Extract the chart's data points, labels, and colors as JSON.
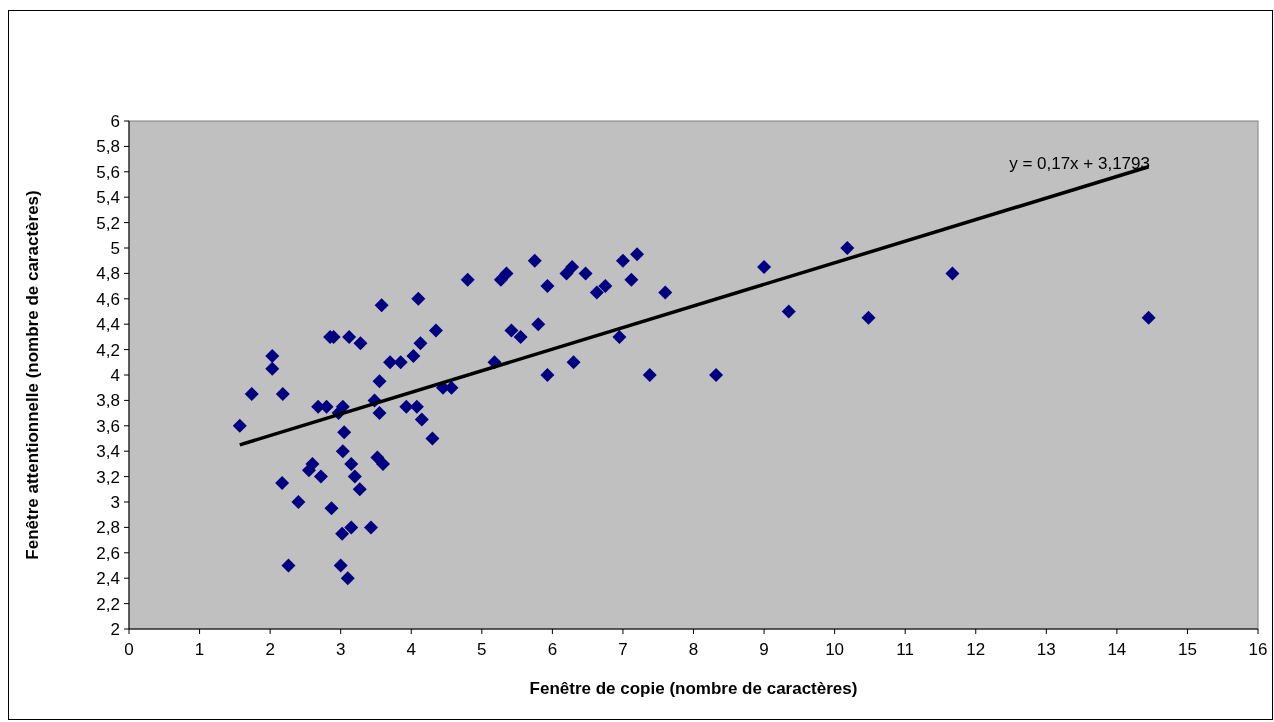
{
  "chart_data": {
    "type": "scatter",
    "xlabel": "Fenêtre de copie (nombre de caractères)",
    "ylabel": "Fenêtre attentionnelle (nombre de caractères)",
    "marker": "diamond",
    "grid": false,
    "xlim": [
      0,
      16
    ],
    "xticks": [
      0,
      1,
      2,
      3,
      4,
      5,
      6,
      7,
      8,
      9,
      10,
      11,
      12,
      13,
      14,
      15,
      16
    ],
    "ylim": [
      2,
      6
    ],
    "yticks": [
      2,
      {
        "value": 2.2,
        "label": "2,2"
      },
      {
        "value": 2.4,
        "label": "2,4"
      },
      {
        "value": 2.6,
        "label": "2,6"
      },
      {
        "value": 2.8,
        "label": "2,8"
      },
      3,
      {
        "value": 3.2,
        "label": "3,2"
      },
      {
        "value": 3.4,
        "label": "3,4"
      },
      {
        "value": 3.6,
        "label": "3,6"
      },
      {
        "value": 3.8,
        "label": "3,8"
      },
      4,
      {
        "value": 4.2,
        "label": "4,2"
      },
      {
        "value": 4.4,
        "label": "4,4"
      },
      {
        "value": 4.6,
        "label": "4,6"
      },
      {
        "value": 4.8,
        "label": "4,8"
      },
      5,
      {
        "value": 5.2,
        "label": "5,2"
      },
      {
        "value": 5.4,
        "label": "5,4"
      },
      {
        "value": 5.6,
        "label": "5,6"
      },
      {
        "value": 5.8,
        "label": "5,8"
      },
      6
    ],
    "annotations": [
      "y = 0,17x + 3,1793"
    ],
    "series": [
      {
        "color": "#000080",
        "x": [
          1.57,
          1.74,
          2.03,
          2.03,
          2.18,
          2.17,
          2.26,
          2.4,
          2.55,
          2.6,
          2.68,
          2.72,
          2.8,
          2.85,
          2.9,
          2.87,
          2.97,
          3.0,
          3.02,
          3.03,
          3.03,
          3.05,
          3.1,
          3.12,
          3.15,
          3.15,
          3.2,
          3.27,
          3.28,
          3.43,
          3.48,
          3.52,
          3.55,
          3.55,
          3.58,
          3.6,
          3.7,
          3.85,
          3.93,
          4.03,
          4.08,
          4.1,
          4.13,
          4.15,
          4.3,
          4.35,
          4.45,
          4.57,
          4.8,
          5.18,
          5.27,
          5.35,
          5.42,
          5.55,
          5.75,
          5.8,
          5.93,
          5.93,
          6.2,
          6.28,
          6.3,
          6.47,
          6.63,
          6.75,
          6.95,
          7.0,
          7.12,
          7.2,
          7.38,
          7.6,
          8.32,
          9.0,
          9.35,
          10.18,
          10.48,
          11.67,
          14.45
        ],
        "values": [
          3.6,
          3.85,
          4.15,
          4.05,
          3.85,
          3.15,
          2.5,
          3.0,
          3.25,
          3.3,
          3.75,
          3.2,
          3.75,
          4.3,
          4.3,
          2.95,
          3.7,
          2.5,
          2.75,
          3.75,
          3.4,
          3.55,
          2.4,
          4.3,
          3.3,
          2.8,
          3.2,
          3.1,
          4.25,
          2.8,
          3.8,
          3.35,
          3.95,
          3.7,
          4.55,
          3.3,
          4.1,
          4.1,
          3.75,
          4.15,
          3.75,
          4.6,
          4.25,
          3.65,
          3.5,
          4.35,
          3.9,
          3.9,
          4.75,
          4.1,
          4.75,
          4.8,
          4.35,
          4.3,
          4.9,
          4.4,
          4.7,
          4.0,
          4.8,
          4.85,
          4.1,
          4.8,
          4.65,
          4.7,
          4.3,
          4.9,
          4.75,
          4.95,
          4.0,
          4.65,
          4.0,
          4.85,
          4.5,
          5.0,
          4.45,
          4.8,
          4.45
        ]
      },
      {
        "type": "line",
        "marker": "none",
        "color": "#000000",
        "x": [
          1.57,
          14.45
        ],
        "values": [
          3.45,
          5.64
        ]
      }
    ]
  }
}
